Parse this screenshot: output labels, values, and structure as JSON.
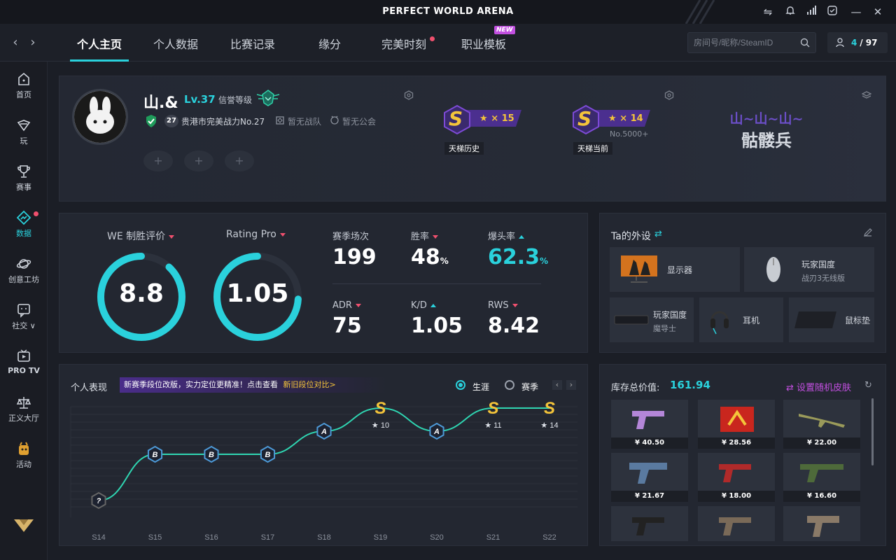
{
  "app": {
    "title": "PERFECT WORLD ARENA"
  },
  "nav": {
    "tabs": [
      {
        "label": "个人主页"
      },
      {
        "label": "个人数据"
      },
      {
        "label": "比赛记录"
      },
      {
        "label": "缘分"
      },
      {
        "label": "完美时刻"
      },
      {
        "label": "职业模板"
      }
    ],
    "new_badge": "NEW",
    "search_placeholder": "房间号/昵称/SteamID",
    "friends_online": "4",
    "friends_total": "/ 97"
  },
  "sidebar": {
    "items": [
      {
        "label": "首页"
      },
      {
        "label": "玩"
      },
      {
        "label": "赛事"
      },
      {
        "label": "数据"
      },
      {
        "label": "创意工坊"
      },
      {
        "label": "社交 ∨"
      },
      {
        "label": "PRO TV"
      },
      {
        "label": "正义大厅"
      },
      {
        "label": "活动"
      }
    ]
  },
  "profile": {
    "name": "山.&",
    "level": "Lv.37",
    "credit_label": "信誉等级",
    "rank_num": "27",
    "rank_text": "贵港市完美战力No.27",
    "team": "暂无战队",
    "guild": "暂无公会",
    "ladder_history": {
      "rank": "S",
      "stars": "× 15",
      "label": "天梯历史"
    },
    "ladder_current": {
      "rank": "S",
      "stars": "× 14",
      "label": "天梯当前",
      "sub": "No.5000+"
    },
    "title_top": "山~山~山~",
    "title_main": "骷髅兵"
  },
  "stats": {
    "we_label": "WE 制胜评价",
    "we_value": "8.8",
    "we_fraction": 0.88,
    "rating_label": "Rating Pro",
    "rating_value": "1.05",
    "rating_fraction": 0.74,
    "grid": [
      {
        "label": "赛季场次",
        "value": "199",
        "trend": "none"
      },
      {
        "label": "胜率",
        "value": "48",
        "unit": "%",
        "trend": "down"
      },
      {
        "label": "爆头率",
        "value": "62.3",
        "unit": "%",
        "trend": "up",
        "accent": true
      },
      {
        "label": "ADR",
        "value": "75",
        "trend": "down"
      },
      {
        "label": "K/D",
        "value": "1.05",
        "trend": "up"
      },
      {
        "label": "RWS",
        "value": "8.42",
        "trend": "down"
      }
    ]
  },
  "gear": {
    "title": "Ta的外设",
    "items": [
      {
        "label": "显示器",
        "sub": ""
      },
      {
        "label": "玩家国度",
        "sub": "战刃3无线版"
      },
      {
        "label": "玩家国度",
        "sub": "魔导士"
      },
      {
        "label": "耳机",
        "sub": ""
      },
      {
        "label": "鼠标垫",
        "sub": ""
      }
    ]
  },
  "performance": {
    "title": "个人表现",
    "banner_text": "新赛季段位改版，实力定位更精准！点击查看",
    "banner_link": "新旧段位对比>",
    "option_career": "生涯",
    "option_season": "赛季"
  },
  "chart_data": {
    "type": "line",
    "categories": [
      "S14",
      "S15",
      "S16",
      "S17",
      "S18",
      "S19",
      "S20",
      "S21",
      "S22"
    ],
    "values": [
      0,
      2,
      2,
      2,
      3,
      4,
      3,
      4,
      4
    ],
    "rank_labels": [
      "?",
      "B",
      "B",
      "B",
      "A",
      "S",
      "A",
      "S",
      "S"
    ],
    "stars": [
      "",
      "",
      "",
      "",
      "",
      "★ 10",
      "",
      "★ 11",
      "★ 14"
    ],
    "ylim": [
      0,
      4
    ],
    "grid": true
  },
  "inventory": {
    "label": "库存总价值:",
    "total": "161.94",
    "random_skin": "设置随机皮肤",
    "items": [
      {
        "price": "¥ 40.50"
      },
      {
        "price": "¥ 28.56"
      },
      {
        "price": "¥ 22.00"
      },
      {
        "price": "¥ 21.67"
      },
      {
        "price": "¥ 18.00"
      },
      {
        "price": "¥ 16.60"
      },
      {
        "price": ""
      },
      {
        "price": ""
      },
      {
        "price": ""
      }
    ]
  },
  "colors": {
    "accent": "#2ad1dc",
    "alert": "#f0506e",
    "purple": "#7d4ad6",
    "gold": "#f4c43a"
  }
}
